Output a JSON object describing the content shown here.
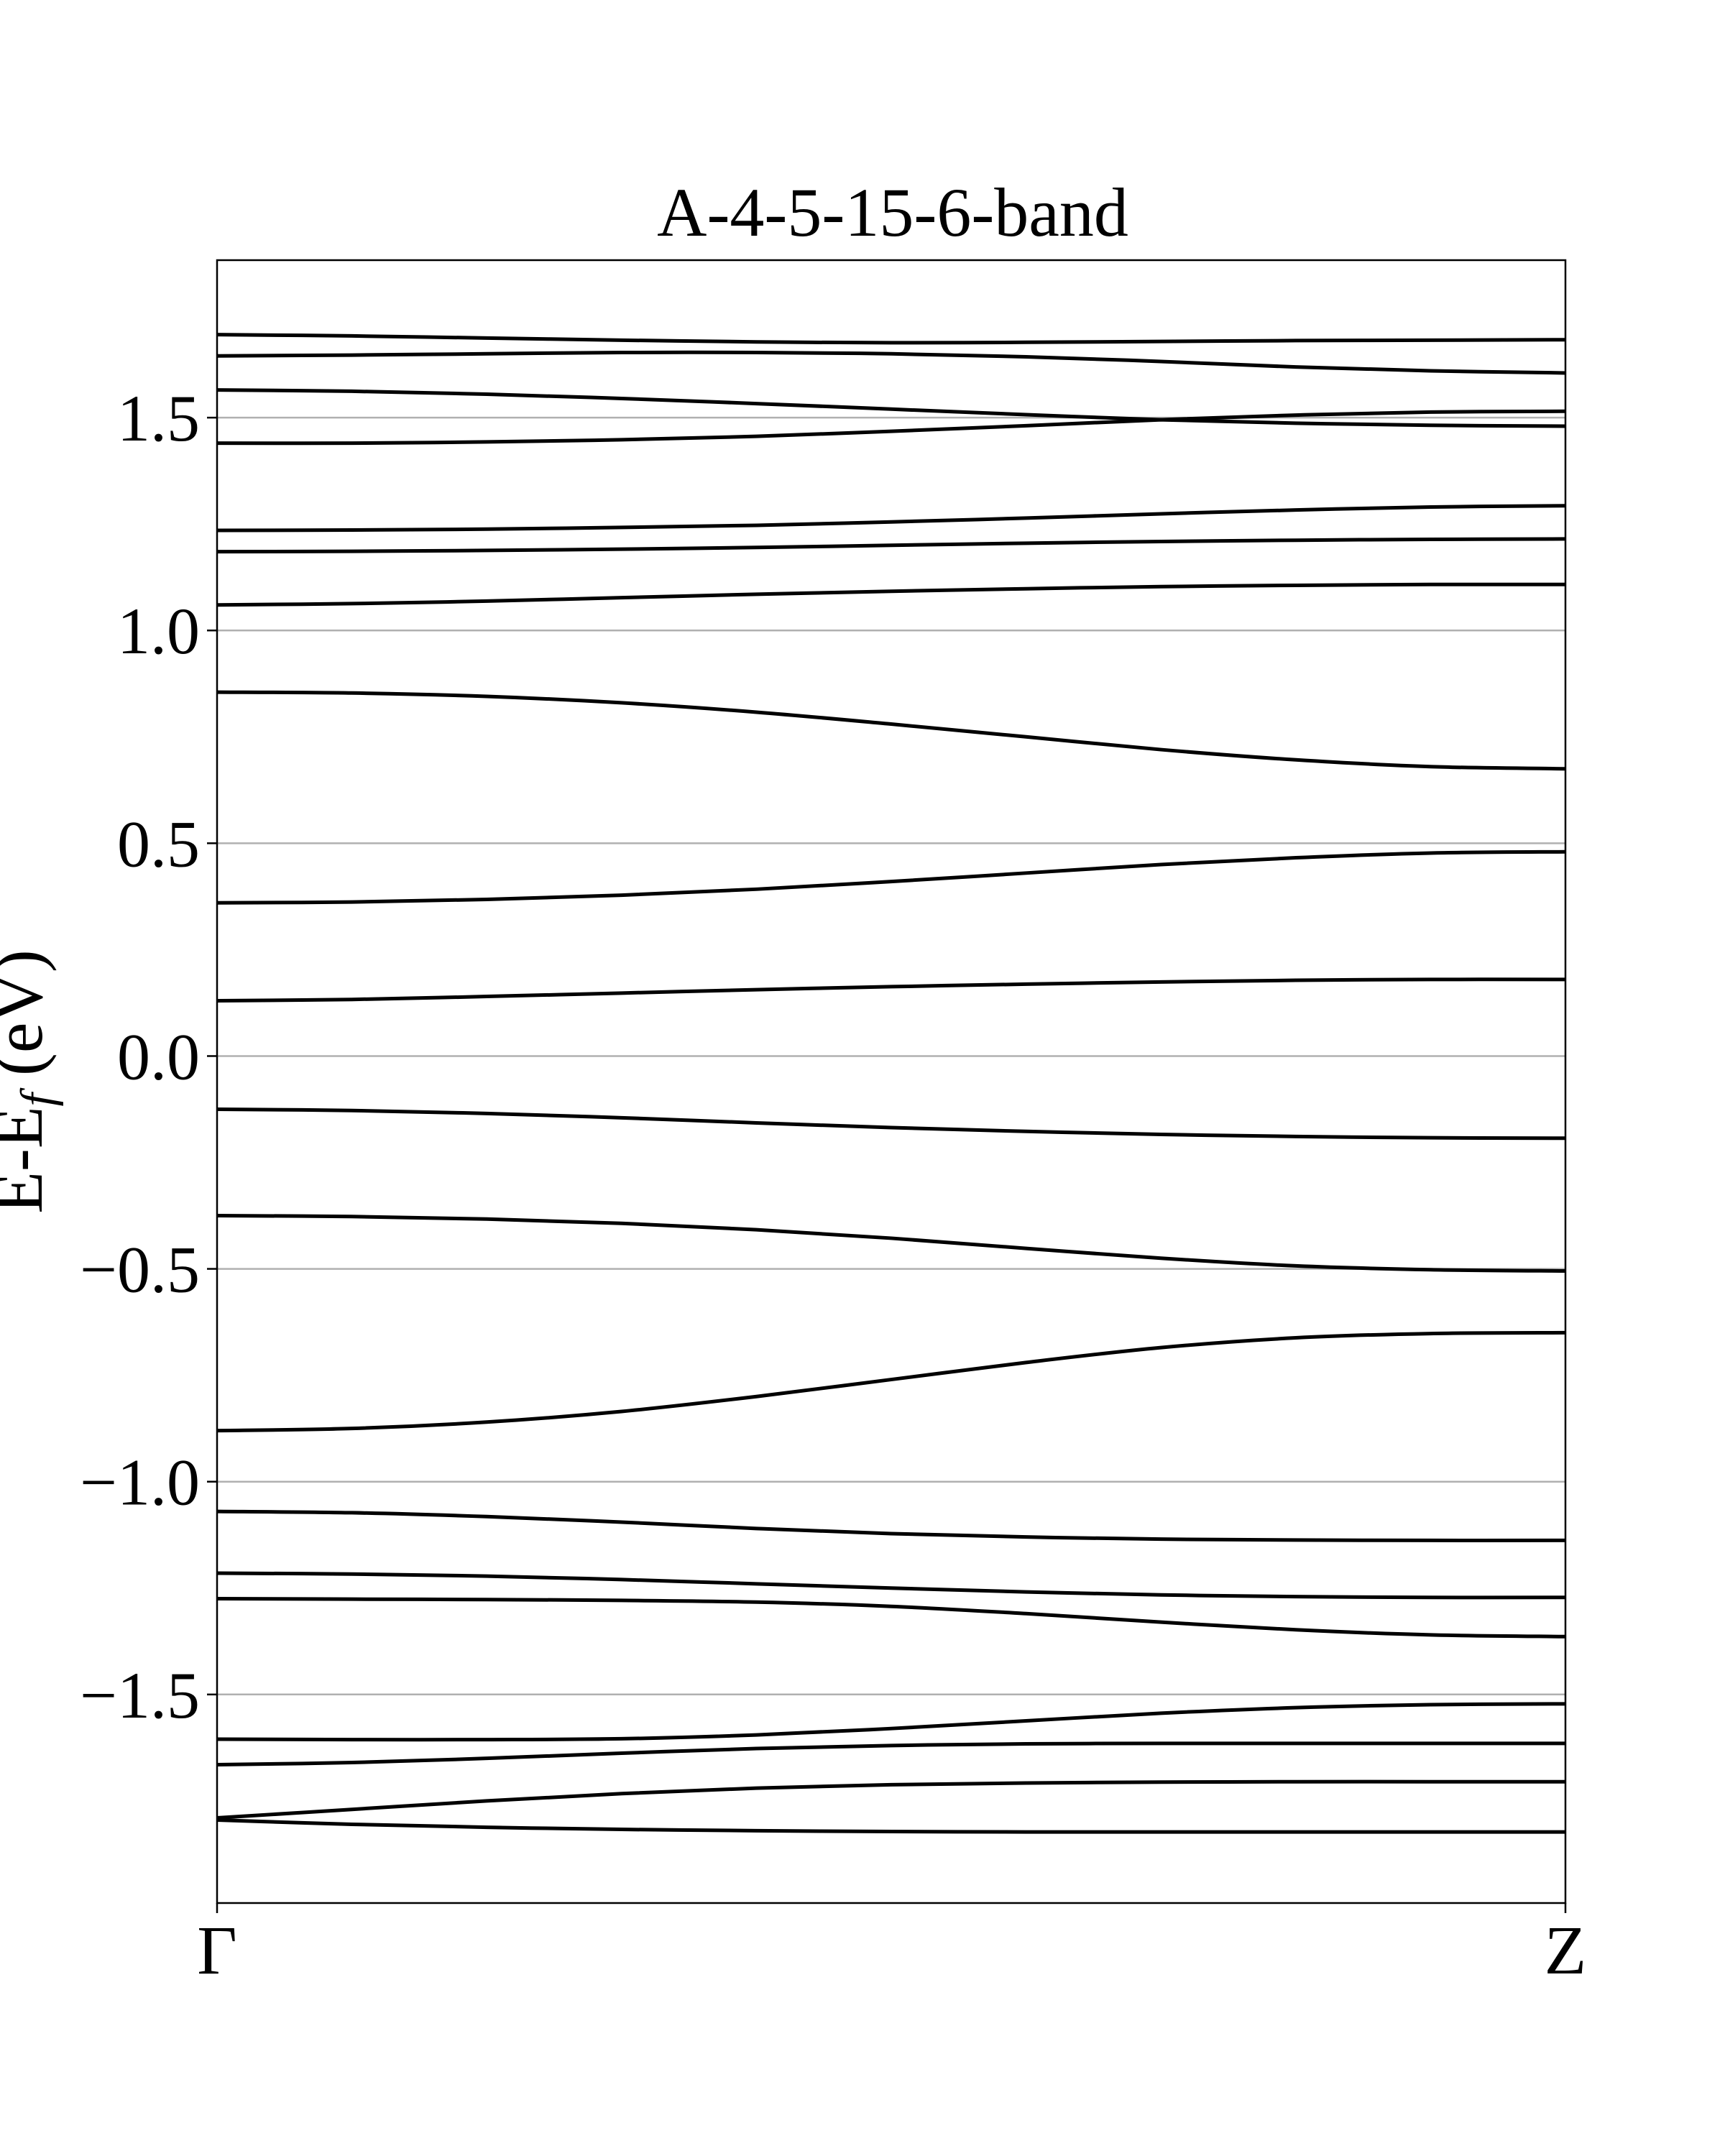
{
  "chart_data": {
    "type": "line",
    "title": "A-4-5-15-6-band",
    "ylabel": "E-E",
    "ylabel_sub": "f",
    "ylabel_unit": " (eV)",
    "xlabel": "",
    "x_ticks": [
      "Γ",
      "Z"
    ],
    "x": [
      0,
      0.1,
      0.2,
      0.3,
      0.4,
      0.5,
      0.6,
      0.7,
      0.8,
      0.9,
      1.0
    ],
    "ylim": [
      -1.99,
      1.87
    ],
    "yticks": [
      -1.5,
      -1.0,
      -0.5,
      0.0,
      0.5,
      1.0,
      1.5
    ],
    "ytick_labels": [
      "−1.5",
      "−1.0",
      "−0.5",
      "0.0",
      "0.5",
      "1.0",
      "1.5"
    ],
    "grid": "horizontal",
    "line_color": "#000000",
    "series": [
      {
        "values": [
          1.695,
          1.692,
          1.687,
          1.682,
          1.678,
          1.676,
          1.677,
          1.679,
          1.681,
          1.682,
          1.683
        ]
      },
      {
        "values": [
          1.645,
          1.647,
          1.65,
          1.653,
          1.653,
          1.65,
          1.643,
          1.632,
          1.619,
          1.61,
          1.605
        ]
      },
      {
        "values": [
          1.565,
          1.562,
          1.555,
          1.545,
          1.533,
          1.52,
          1.507,
          1.495,
          1.487,
          1.482,
          1.48
        ]
      },
      {
        "values": [
          1.44,
          1.44,
          1.443,
          1.448,
          1.456,
          1.468,
          1.481,
          1.495,
          1.506,
          1.513,
          1.515
        ]
      },
      {
        "values": [
          1.235,
          1.236,
          1.238,
          1.242,
          1.247,
          1.255,
          1.264,
          1.274,
          1.283,
          1.29,
          1.293
        ]
      },
      {
        "values": [
          1.185,
          1.186,
          1.188,
          1.191,
          1.195,
          1.2,
          1.205,
          1.209,
          1.212,
          1.214,
          1.215
        ]
      },
      {
        "values": [
          1.06,
          1.063,
          1.069,
          1.077,
          1.085,
          1.092,
          1.098,
          1.103,
          1.106,
          1.108,
          1.108
        ]
      },
      {
        "values": [
          0.855,
          0.853,
          0.845,
          0.83,
          0.808,
          0.78,
          0.75,
          0.72,
          0.696,
          0.68,
          0.675
        ]
      },
      {
        "values": [
          0.36,
          0.362,
          0.368,
          0.378,
          0.392,
          0.41,
          0.43,
          0.45,
          0.466,
          0.477,
          0.48
        ]
      },
      {
        "values": [
          0.13,
          0.133,
          0.14,
          0.148,
          0.156,
          0.163,
          0.169,
          0.174,
          0.178,
          0.18,
          0.18
        ]
      },
      {
        "values": [
          -0.125,
          -0.128,
          -0.135,
          -0.145,
          -0.157,
          -0.168,
          -0.177,
          -0.184,
          -0.189,
          -0.192,
          -0.193
        ]
      },
      {
        "values": [
          -0.375,
          -0.377,
          -0.383,
          -0.393,
          -0.408,
          -0.428,
          -0.452,
          -0.475,
          -0.493,
          -0.502,
          -0.505
        ]
      },
      {
        "values": [
          -0.88,
          -0.875,
          -0.86,
          -0.835,
          -0.8,
          -0.76,
          -0.72,
          -0.685,
          -0.662,
          -0.652,
          -0.65
        ]
      },
      {
        "values": [
          -1.07,
          -1.073,
          -1.082,
          -1.095,
          -1.11,
          -1.122,
          -1.13,
          -1.135,
          -1.137,
          -1.138,
          -1.138
        ]
      },
      {
        "values": [
          -1.215,
          -1.217,
          -1.222,
          -1.23,
          -1.24,
          -1.25,
          -1.259,
          -1.266,
          -1.27,
          -1.272,
          -1.272
        ]
      },
      {
        "values": [
          -1.275,
          -1.276,
          -1.277,
          -1.279,
          -1.283,
          -1.293,
          -1.31,
          -1.33,
          -1.348,
          -1.36,
          -1.364
        ]
      },
      {
        "values": [
          -1.605,
          -1.606,
          -1.606,
          -1.604,
          -1.595,
          -1.58,
          -1.562,
          -1.544,
          -1.531,
          -1.524,
          -1.522
        ]
      },
      {
        "values": [
          -1.665,
          -1.66,
          -1.65,
          -1.638,
          -1.627,
          -1.62,
          -1.616,
          -1.615,
          -1.615,
          -1.615,
          -1.615
        ]
      },
      {
        "values": [
          -1.79,
          -1.77,
          -1.75,
          -1.733,
          -1.72,
          -1.712,
          -1.708,
          -1.706,
          -1.705,
          -1.705,
          -1.705
        ]
      },
      {
        "values": [
          -1.795,
          -1.805,
          -1.812,
          -1.817,
          -1.82,
          -1.822,
          -1.823,
          -1.823,
          -1.823,
          -1.823,
          -1.823
        ]
      }
    ]
  }
}
